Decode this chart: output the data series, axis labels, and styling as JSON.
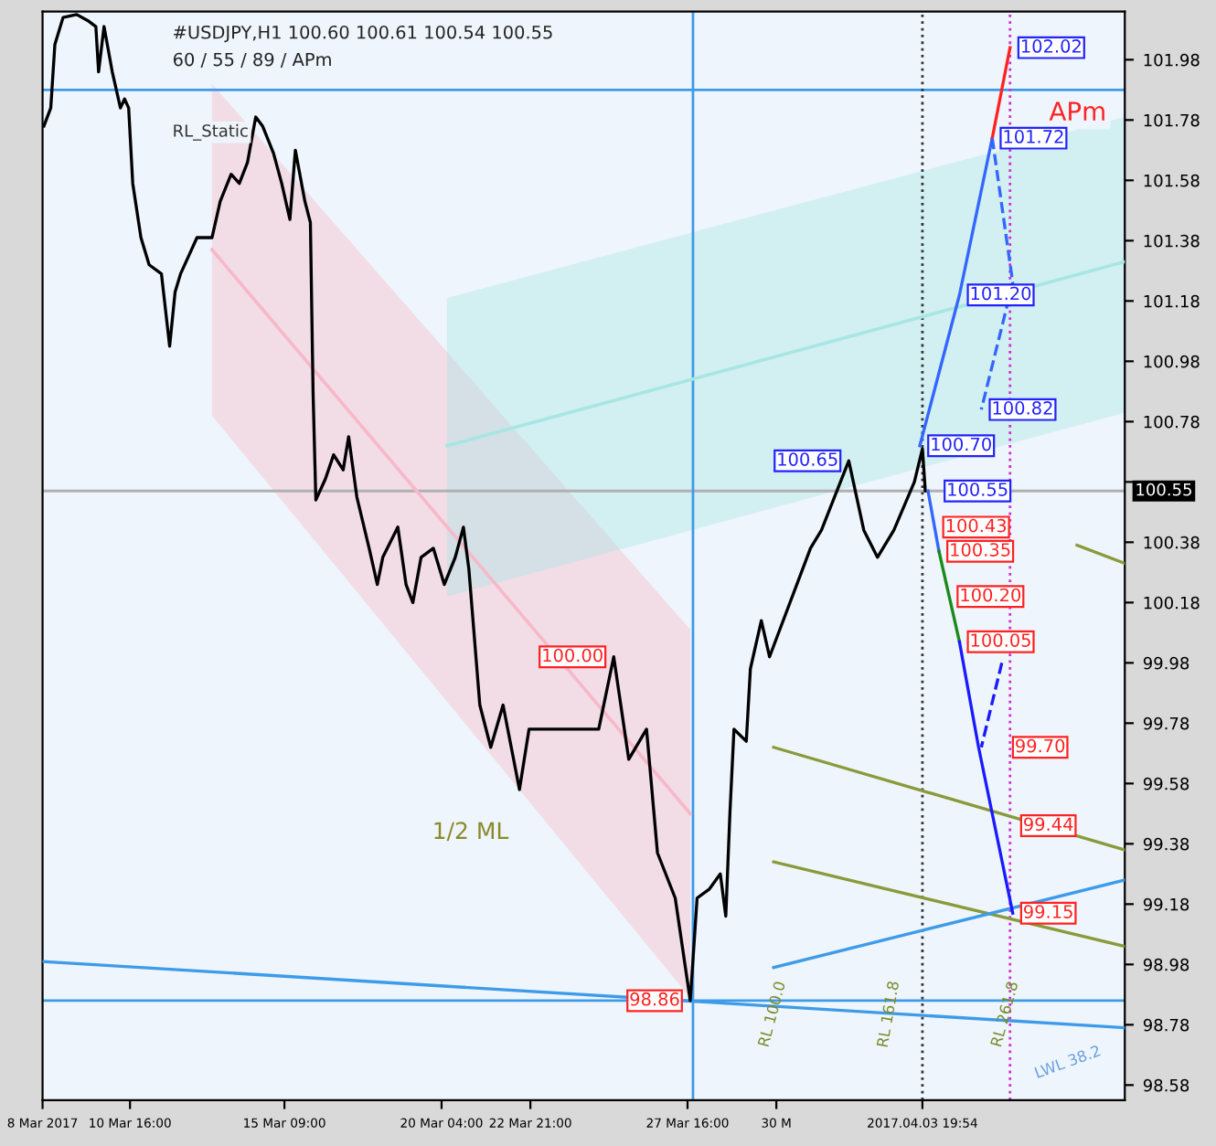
{
  "chart_data": {
    "type": "line",
    "title": "#USDJPY,H1 100.60 100.61 100.54 100.55",
    "subtitle": "60 / 55 / 89 / APm",
    "xlim": [
      "2017-03-08T00:00",
      "2017-04-10T00:00"
    ],
    "ylim": [
      98.53,
      102.14
    ],
    "xticks": [
      {
        "value": "2017-03-08T00:00",
        "label": "8 Mar 2017"
      },
      {
        "value": "2017-03-10T16:00",
        "label": "10 Mar 16:00"
      },
      {
        "value": "2017-03-15T09:00",
        "label": "15 Mar 09:00"
      },
      {
        "value": "2017-03-20T04:00",
        "label": "20 Mar 04:00"
      },
      {
        "value": "2017-03-22T21:00",
        "label": "22 Mar 21:00"
      },
      {
        "value": "2017-03-27T16:00",
        "label": "27 Mar 16:00"
      },
      {
        "value": "2017-03-30T09:00",
        "label": "30 M"
      },
      {
        "value": "2017-04-03T19:54",
        "label": "2017.04.03 19:54"
      }
    ],
    "yticks": [
      98.58,
      98.78,
      98.98,
      99.18,
      99.38,
      99.58,
      99.78,
      99.98,
      100.18,
      100.38,
      {
        "value": 100.58,
        "label": null
      },
      100.78,
      100.98,
      101.18,
      101.38,
      101.58,
      101.78,
      101.98
    ],
    "grid": false,
    "legend": false,
    "series": [
      {
        "type": "line",
        "color": "#f7b8c8",
        "x": [
          "2017-03-13T04:00",
          "2017-03-27T18:00"
        ],
        "values": [
          101.35,
          99.48
        ],
        "lower": [
          100.8,
          98.87
        ],
        "upper": [
          101.9,
          100.09
        ]
      },
      {
        "type": "line",
        "color": "#a8e6e3",
        "x": [
          "2017-03-20T08:00",
          "2017-04-10T00:00"
        ],
        "values": [
          100.7,
          101.31
        ],
        "lower": [
          100.2,
          100.81
        ],
        "upper": [
          101.19,
          101.79
        ]
      },
      {
        "type": "line",
        "color": "#8a9a3a",
        "x": [
          "2017-04-08T13:00",
          "2017-04-10T00:00"
        ],
        "values": [
          100.37,
          100.31
        ]
      },
      {
        "type": "line",
        "color": "#8a9a3a",
        "x": [
          "2017-03-30T07:00",
          "2017-04-10T00:00"
        ],
        "values": [
          99.7,
          99.36
        ]
      },
      {
        "type": "line",
        "color": "#8a9a3a",
        "x": [
          "2017-03-30T07:00",
          "2017-04-10T00:00"
        ],
        "values": [
          99.32,
          99.04
        ]
      },
      {
        "type": "line",
        "color": "#3d9be9",
        "x": [
          "2017-03-30T07:00",
          "2017-04-10T00:00"
        ],
        "values": [
          98.97,
          99.26
        ]
      },
      {
        "type": "line",
        "color": "#3d9be9",
        "x": [
          "2017-03-08T00:00",
          "2017-04-10T00:00"
        ],
        "values": [
          98.99,
          98.77
        ]
      },
      {
        "color": "#000000",
        "x": [
          "2017-03-08T01:00",
          "2017-03-08T06:00",
          "2017-03-08T09:00",
          "2017-03-08T15:00",
          "2017-03-09T01:00",
          "2017-03-09T09:00",
          "2017-03-09T15:00",
          "2017-03-09T17:00",
          "2017-03-09T21:00",
          "2017-03-10T03:00",
          "2017-03-10T09:00",
          "2017-03-10T12:00",
          "2017-03-10T15:00",
          "2017-03-10T18:00",
          "2017-03-11T00:00",
          "2017-03-11T06:00",
          "2017-03-11T15:00",
          "2017-03-11T21:00",
          "2017-03-12T01:00",
          "2017-03-12T05:00",
          "2017-03-12T11:00",
          "2017-03-12T17:00",
          "2017-03-13T04:00",
          "2017-03-13T10:00",
          "2017-03-13T18:00",
          "2017-03-14T00:00",
          "2017-03-14T06:00",
          "2017-03-14T12:00",
          "2017-03-14T17:00",
          "2017-03-15T01:00",
          "2017-03-15T07:00",
          "2017-03-15T13:00",
          "2017-03-15T17:00",
          "2017-03-16T00:00",
          "2017-03-16T04:00",
          "2017-03-16T06:00",
          "2017-03-16T08:00",
          "2017-03-16T15:00",
          "2017-03-16T21:00",
          "2017-03-17T04:00",
          "2017-03-17T08:00",
          "2017-03-17T14:00",
          "2017-03-17T23:00",
          "2017-03-18T05:00",
          "2017-03-18T09:00",
          "2017-03-18T20:00",
          "2017-03-19T02:00",
          "2017-03-19T07:00",
          "2017-03-19T13:00",
          "2017-03-19T22:00",
          "2017-03-20T06:00",
          "2017-03-20T14:00",
          "2017-03-20T20:00",
          "2017-03-21T00:00",
          "2017-03-21T08:00",
          "2017-03-21T16:00",
          "2017-03-22T01:00",
          "2017-03-22T13:00",
          "2017-03-22T20:00",
          "2017-03-23T16:00",
          "2017-03-24T08:00",
          "2017-03-24T23:00",
          "2017-03-25T10:00",
          "2017-03-25T21:00",
          "2017-03-26T10:00",
          "2017-03-26T18:00",
          "2017-03-27T07:00",
          "2017-03-27T18:00",
          "2017-03-27T23:00",
          "2017-03-28T08:00",
          "2017-03-28T16:00",
          "2017-03-28T20:00",
          "2017-03-28T23:00",
          "2017-03-29T02:00",
          "2017-03-29T11:00",
          "2017-03-29T14:00",
          "2017-03-29T22:00",
          "2017-03-30T04:00",
          "2017-03-31T10:00",
          "2017-03-31T18:00",
          "2017-04-01T14:00",
          "2017-04-02T01:00",
          "2017-04-02T11:00",
          "2017-04-02T23:00",
          "2017-04-03T14:00",
          "2017-04-03T19:54",
          "2017-04-03T22:00"
        ],
        "values": [
          101.76,
          101.82,
          102.03,
          102.12,
          102.13,
          102.11,
          102.09,
          101.94,
          102.09,
          101.94,
          101.82,
          101.85,
          101.82,
          101.57,
          101.39,
          101.3,
          101.27,
          101.03,
          101.21,
          101.27,
          101.33,
          101.39,
          101.39,
          101.51,
          101.6,
          101.57,
          101.64,
          101.79,
          101.76,
          101.67,
          101.57,
          101.45,
          101.68,
          101.51,
          101.44,
          100.87,
          100.52,
          100.59,
          100.67,
          100.62,
          100.73,
          100.53,
          100.36,
          100.24,
          100.33,
          100.43,
          100.24,
          100.18,
          100.33,
          100.36,
          100.24,
          100.33,
          100.43,
          100.29,
          99.84,
          99.7,
          99.84,
          99.56,
          99.76,
          99.76,
          99.76,
          99.76,
          100.0,
          99.66,
          99.76,
          99.35,
          99.2,
          98.86,
          99.2,
          99.23,
          99.28,
          99.14,
          99.48,
          99.76,
          99.72,
          99.96,
          100.12,
          100.0,
          100.36,
          100.42,
          100.65,
          100.42,
          100.33,
          100.42,
          100.58,
          100.69,
          100.55
        ]
      },
      {
        "type": "line",
        "color": "#3366ff",
        "x": [
          "2017-04-03T18:00",
          "2017-04-04T23:00",
          "2017-04-05T23:00"
        ],
        "values": [
          100.7,
          101.2,
          101.72
        ]
      },
      {
        "type": "line",
        "color": "#ff2222",
        "x": [
          "2017-04-05T23:00",
          "2017-04-06T12:00"
        ],
        "values": [
          101.72,
          102.02
        ]
      },
      {
        "type": "line",
        "color": "#3366ff",
        "line_style": "dashed",
        "x": [
          "2017-04-05T23:00",
          "2017-04-06T14:00",
          "2017-04-05T15:00"
        ],
        "values": [
          101.72,
          101.24,
          100.82
        ]
      },
      {
        "type": "line",
        "color": "#3366ff",
        "x": [
          "2017-04-04T00:00",
          "2017-04-04T08:00"
        ],
        "values": [
          100.55,
          100.35
        ]
      },
      {
        "type": "line",
        "color": "#1a8a1a",
        "x": [
          "2017-04-04T08:00",
          "2017-04-04T23:00"
        ],
        "values": [
          100.35,
          100.05
        ]
      },
      {
        "type": "line",
        "color": "#1a1aff",
        "x": [
          "2017-04-04T23:00",
          "2017-04-05T13:00",
          "2017-04-06T14:00"
        ],
        "values": [
          100.05,
          99.7,
          99.15
        ]
      },
      {
        "type": "line",
        "color": "#1a1aff",
        "line_style": "dashed",
        "x": [
          "2017-04-06T06:00",
          "2017-04-05T15:00"
        ],
        "values": [
          99.98,
          99.7
        ]
      }
    ],
    "ref_lines": [
      {
        "axis": "y",
        "value": 100.55,
        "label": "100.55",
        "color": "#b0b0b0"
      },
      {
        "axis": "y",
        "value": 101.88,
        "color": "#3d9be9"
      },
      {
        "axis": "y",
        "value": 98.86,
        "color": "#3d9be9"
      },
      {
        "axis": "x",
        "value": "2017-03-27T20:00",
        "color": "#3d9be9"
      },
      {
        "axis": "x",
        "value": "2017-04-03T19:54",
        "color": "#333333",
        "line_style": "dotted"
      },
      {
        "axis": "x",
        "value": "2017-04-06T12:00",
        "color": "#cc33cc",
        "line_style": "dotted"
      }
    ],
    "annotations": [
      {
        "text": "102.02",
        "x": "2017-04-06T12:00",
        "y": 102.02
      },
      {
        "text": "101.72",
        "x": "2017-04-05T23:00",
        "y": 101.72
      },
      {
        "text": "101.20",
        "x": "2017-04-04T23:00",
        "y": 101.2
      },
      {
        "text": "100.82",
        "x": "2017-04-05T15:00",
        "y": 100.82
      },
      {
        "text": "100.70",
        "x": "2017-04-03T18:00",
        "y": 100.7
      },
      {
        "text": "100.55",
        "x": "2017-04-04T06:00",
        "y": 100.55
      },
      {
        "text": "100.43",
        "x": "2017-04-04T05:00",
        "y": 100.43
      },
      {
        "text": "100.35",
        "x": "2017-04-04T08:00",
        "y": 100.35
      },
      {
        "text": "100.20",
        "x": "2017-04-04T15:30",
        "y": 100.2
      },
      {
        "text": "100.05",
        "x": "2017-04-04T23:00",
        "y": 100.05
      },
      {
        "text": "99.70",
        "x": "2017-04-06T08:00",
        "y": 99.7
      },
      {
        "text": "99.44",
        "x": "2017-04-06T14:00",
        "y": 99.44
      },
      {
        "text": "99.15",
        "x": "2017-04-06T14:00",
        "y": 99.15
      },
      {
        "text": "100.65",
        "x": "2017-04-01T14:00",
        "y": 100.65
      },
      {
        "text": "100.00",
        "x": "2017-03-25T10:00",
        "y": 100.0
      },
      {
        "text": "98.86",
        "x": "2017-03-27T18:00",
        "y": 98.86
      },
      "APm",
      "1/2 ML",
      "RL 100.0",
      "RL 161.8",
      "RL 261.8",
      "LWL 38.2",
      "RL_Static"
    ]
  }
}
